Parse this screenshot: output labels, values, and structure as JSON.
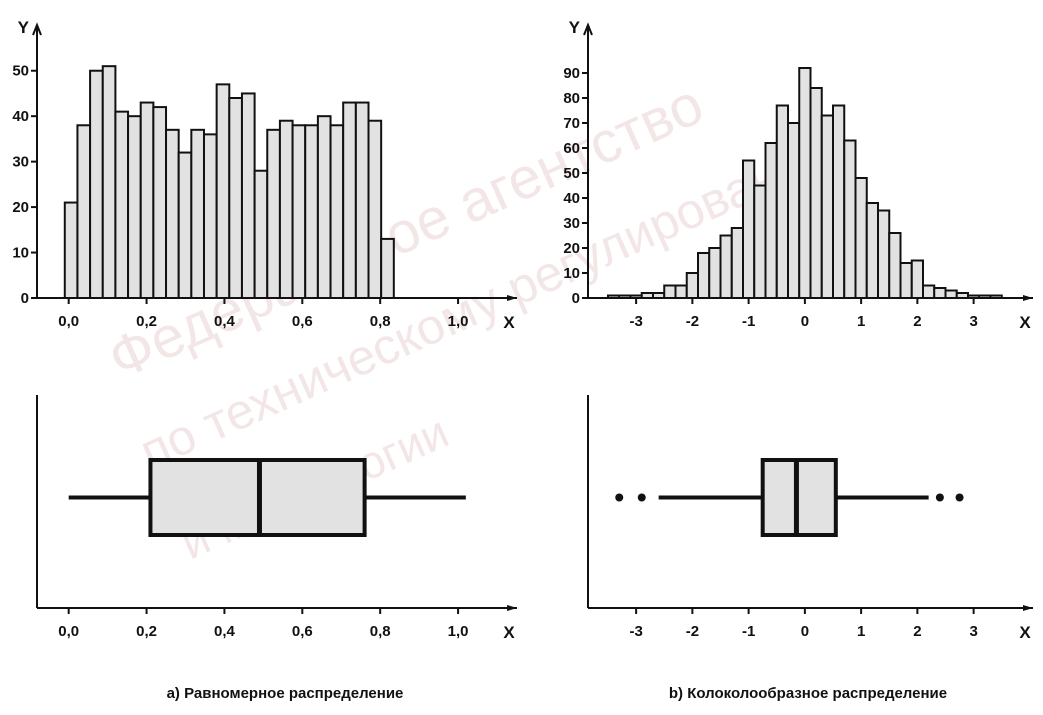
{
  "chart_data": [
    {
      "type": "histogram",
      "panel": "a",
      "xlabel": "X",
      "ylabel": "Y",
      "xlim": [
        -0.03,
        1.1
      ],
      "ylim": [
        0,
        55
      ],
      "x_ticks": [
        "0,0",
        "0,2",
        "0,4",
        "0,6",
        "0,8",
        "1,0"
      ],
      "x_tick_values": [
        0,
        0.2,
        0.4,
        0.6,
        0.8,
        1.0
      ],
      "y_ticks": [
        "0",
        "10",
        "20",
        "30",
        "40",
        "50"
      ],
      "y_tick_values": [
        0,
        10,
        20,
        30,
        40,
        50
      ],
      "bin_start": -0.01,
      "bin_width": 0.0325,
      "values": [
        21,
        38,
        50,
        51,
        41,
        40,
        43,
        42,
        37,
        32,
        37,
        36,
        47,
        44,
        45,
        28,
        37,
        39,
        38,
        38,
        40,
        38,
        43,
        43,
        39,
        13
      ]
    },
    {
      "type": "histogram",
      "panel": "b",
      "xlabel": "X",
      "ylabel": "Y",
      "xlim": [
        -3.5,
        3.7
      ],
      "ylim": [
        0,
        100
      ],
      "x_ticks": [
        "-3",
        "-2",
        "-1",
        "0",
        "1",
        "2",
        "3"
      ],
      "x_tick_values": [
        -3,
        -2,
        -1,
        0,
        1,
        2,
        3
      ],
      "y_ticks": [
        "0",
        "10",
        "20",
        "30",
        "40",
        "50",
        "60",
        "70",
        "80",
        "90"
      ],
      "y_tick_values": [
        0,
        10,
        20,
        30,
        40,
        50,
        60,
        70,
        80,
        90
      ],
      "bin_start": -3.5,
      "bin_width": 0.2,
      "values": [
        1,
        1,
        1,
        2,
        2,
        5,
        5,
        10,
        18,
        20,
        25,
        28,
        55,
        45,
        62,
        77,
        70,
        92,
        84,
        73,
        77,
        63,
        48,
        38,
        35,
        26,
        14,
        15,
        5,
        4,
        3,
        2,
        1,
        1,
        1
      ]
    },
    {
      "type": "boxplot",
      "panel": "a",
      "xlabel": "X",
      "xlim": [
        -0.03,
        1.1
      ],
      "x_ticks": [
        "0,0",
        "0,2",
        "0,4",
        "0,6",
        "0,8",
        "1,0"
      ],
      "x_tick_values": [
        0,
        0.2,
        0.4,
        0.6,
        0.8,
        1.0
      ],
      "whisker_low": 0.0,
      "q1": 0.21,
      "median": 0.49,
      "q3": 0.76,
      "whisker_high": 1.02,
      "outliers": [],
      "caption": "a) Равномерное распределение"
    },
    {
      "type": "boxplot",
      "panel": "b",
      "xlabel": "X",
      "xlim": [
        -3.5,
        3.7
      ],
      "x_ticks": [
        "-3",
        "-2",
        "-1",
        "0",
        "1",
        "2",
        "3"
      ],
      "x_tick_values": [
        -3,
        -2,
        -1,
        0,
        1,
        2,
        3
      ],
      "whisker_low": -2.6,
      "q1": -0.75,
      "median": -0.15,
      "q3": 0.55,
      "whisker_high": 2.2,
      "outliers": [
        -3.3,
        -2.9,
        2.4,
        2.75
      ],
      "caption": "b) Колоколообразное распределение"
    }
  ],
  "colors": {
    "bar_fill": "#e2e2e2",
    "box_fill": "#e2e2e2",
    "stroke": "#111111",
    "watermark": "#e6c9c9"
  },
  "watermark": {
    "lines": [
      "Федеральное агентство",
      "по техническому регулированию",
      "и метрологии"
    ]
  }
}
